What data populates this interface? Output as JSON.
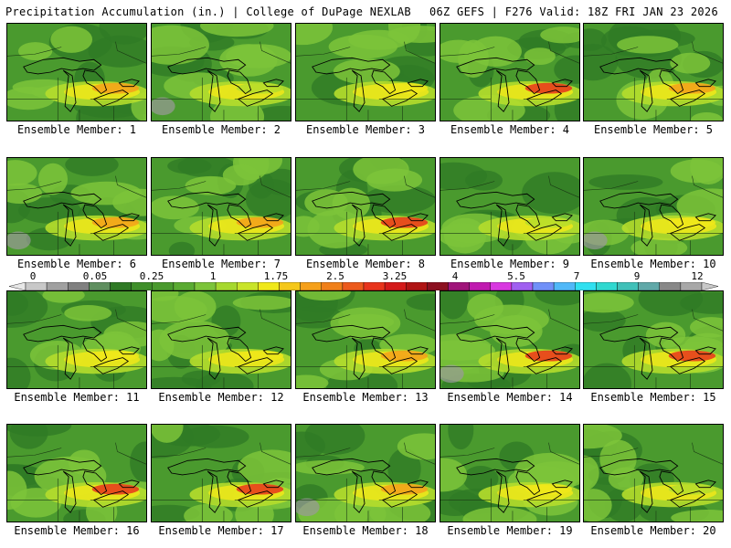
{
  "header": {
    "left": "Precipitation Accumulation (in.) | College of DuPage NEXLAB",
    "right": "06Z GEFS | F276 Valid: 18Z FRI JAN 23 2026"
  },
  "colors": {
    "base_green": "#4a9a2e",
    "dark_green": "#2f7a25",
    "light_green": "#7cc43a",
    "yellow_green": "#b5dd2c",
    "yellow": "#f0e81a",
    "orange": "#f5a01a",
    "red": "#e8341c",
    "gray": "#9a9a9a"
  },
  "legend": {
    "labels": [
      "0",
      "0.05",
      "0.25",
      "1",
      "1.75",
      "2.5",
      "3.25",
      "4",
      "5.5",
      "7",
      "9",
      "12"
    ],
    "swatches": [
      "#e8e8e8",
      "#c8c8c8",
      "#a0a0a0",
      "#808080",
      "#5f8f5f",
      "#2f7a25",
      "#3f8f2a",
      "#4a9a2e",
      "#5aab32",
      "#7cc43a",
      "#a6d82e",
      "#c9e42a",
      "#f0e81a",
      "#f5c81a",
      "#f5a01a",
      "#f0801a",
      "#ec5a1c",
      "#e8341c",
      "#d41a1a",
      "#b01414",
      "#8c1020",
      "#a0147a",
      "#c01ab0",
      "#d838e0",
      "#a060f0",
      "#7090f8",
      "#50b8f8",
      "#30e0f0",
      "#30d8d0",
      "#40c0b8",
      "#60a8a8",
      "#888888",
      "#a8a8a8",
      "#c8c8c8"
    ]
  },
  "members": [
    {
      "label": "Ensemble Member: 1",
      "max_color": "#f5a01a"
    },
    {
      "label": "Ensemble Member: 2",
      "max_color": "#b5dd2c"
    },
    {
      "label": "Ensemble Member: 3",
      "max_color": "#f0e81a"
    },
    {
      "label": "Ensemble Member: 4",
      "max_color": "#e8341c"
    },
    {
      "label": "Ensemble Member: 5",
      "max_color": "#f5a01a"
    },
    {
      "label": "Ensemble Member: 6",
      "max_color": "#f5a01a"
    },
    {
      "label": "Ensemble Member: 7",
      "max_color": "#f5a01a"
    },
    {
      "label": "Ensemble Member: 8",
      "max_color": "#e8341c"
    },
    {
      "label": "Ensemble Member: 9",
      "max_color": "#b5dd2c"
    },
    {
      "label": "Ensemble Member: 10",
      "max_color": "#f0e81a"
    },
    {
      "label": "Ensemble Member: 11",
      "max_color": "#f0e81a"
    },
    {
      "label": "Ensemble Member: 12",
      "max_color": "#f0e81a"
    },
    {
      "label": "Ensemble Member: 13",
      "max_color": "#f5a01a"
    },
    {
      "label": "Ensemble Member: 14",
      "max_color": "#e8341c"
    },
    {
      "label": "Ensemble Member: 15",
      "max_color": "#e8341c"
    },
    {
      "label": "Ensemble Member: 16",
      "max_color": "#e8341c"
    },
    {
      "label": "Ensemble Member: 17",
      "max_color": "#e8341c"
    },
    {
      "label": "Ensemble Member: 18",
      "max_color": "#f5a01a"
    },
    {
      "label": "Ensemble Member: 19",
      "max_color": "#f0e81a"
    },
    {
      "label": "Ensemble Member: 20",
      "max_color": "#b5dd2c"
    }
  ]
}
